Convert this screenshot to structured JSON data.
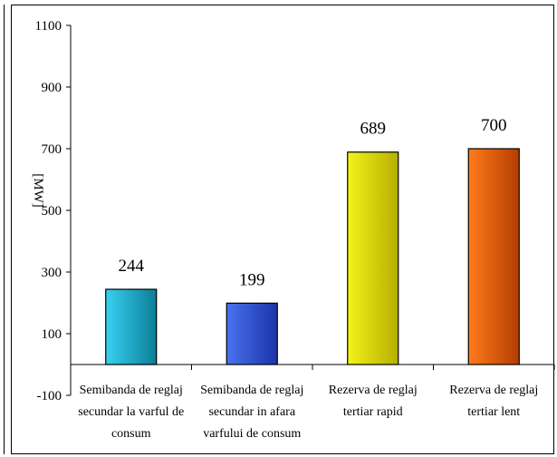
{
  "chart_data": {
    "type": "bar",
    "title": "",
    "xlabel": "",
    "ylabel": "[MW]",
    "ylim": [
      -100,
      1100
    ],
    "yticks": [
      -100,
      100,
      300,
      500,
      700,
      900,
      1100
    ],
    "grid": false,
    "legend": "none",
    "categories": [
      [
        "Semibanda de reglaj",
        "secundar la varful de",
        "consum"
      ],
      [
        "Semibanda de reglaj",
        "secundar in afara",
        "varfului de consum"
      ],
      [
        "Rezerva de reglaj",
        "tertiar rapid"
      ],
      [
        "Rezerva de reglaj",
        "tertiar lent"
      ]
    ],
    "values": [
      244,
      199,
      689,
      700
    ],
    "data_labels": [
      "244",
      "199",
      "689",
      "700"
    ],
    "colors": [
      {
        "light": "#39d0f2",
        "dark": "#0a7e96"
      },
      {
        "light": "#4a72ef",
        "dark": "#1a34a8"
      },
      {
        "light": "#f4f21c",
        "dark": "#b4b000"
      },
      {
        "light": "#ff7a1c",
        "dark": "#b33d00"
      }
    ]
  }
}
